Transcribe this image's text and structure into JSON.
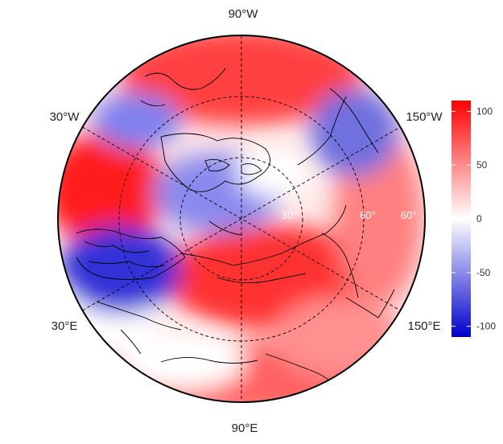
{
  "map": {
    "longitude_labels": {
      "top": "90°W",
      "upper_left": "30°W",
      "upper_right": "150°W",
      "lower_left": "30°E",
      "lower_right": "150°E",
      "bottom": "90°E"
    },
    "latitude_labels": [
      "30°",
      "60°",
      "60°"
    ]
  },
  "colorbar": {
    "ticks": [
      "100",
      "50",
      "0",
      "-50",
      "-100"
    ],
    "tick_values": [
      100,
      50,
      0,
      -50,
      -100
    ],
    "range": [
      -110,
      110
    ],
    "colors": {
      "high": "#ff0000",
      "mid": "#ffffff",
      "low": "#0000cc"
    }
  }
}
